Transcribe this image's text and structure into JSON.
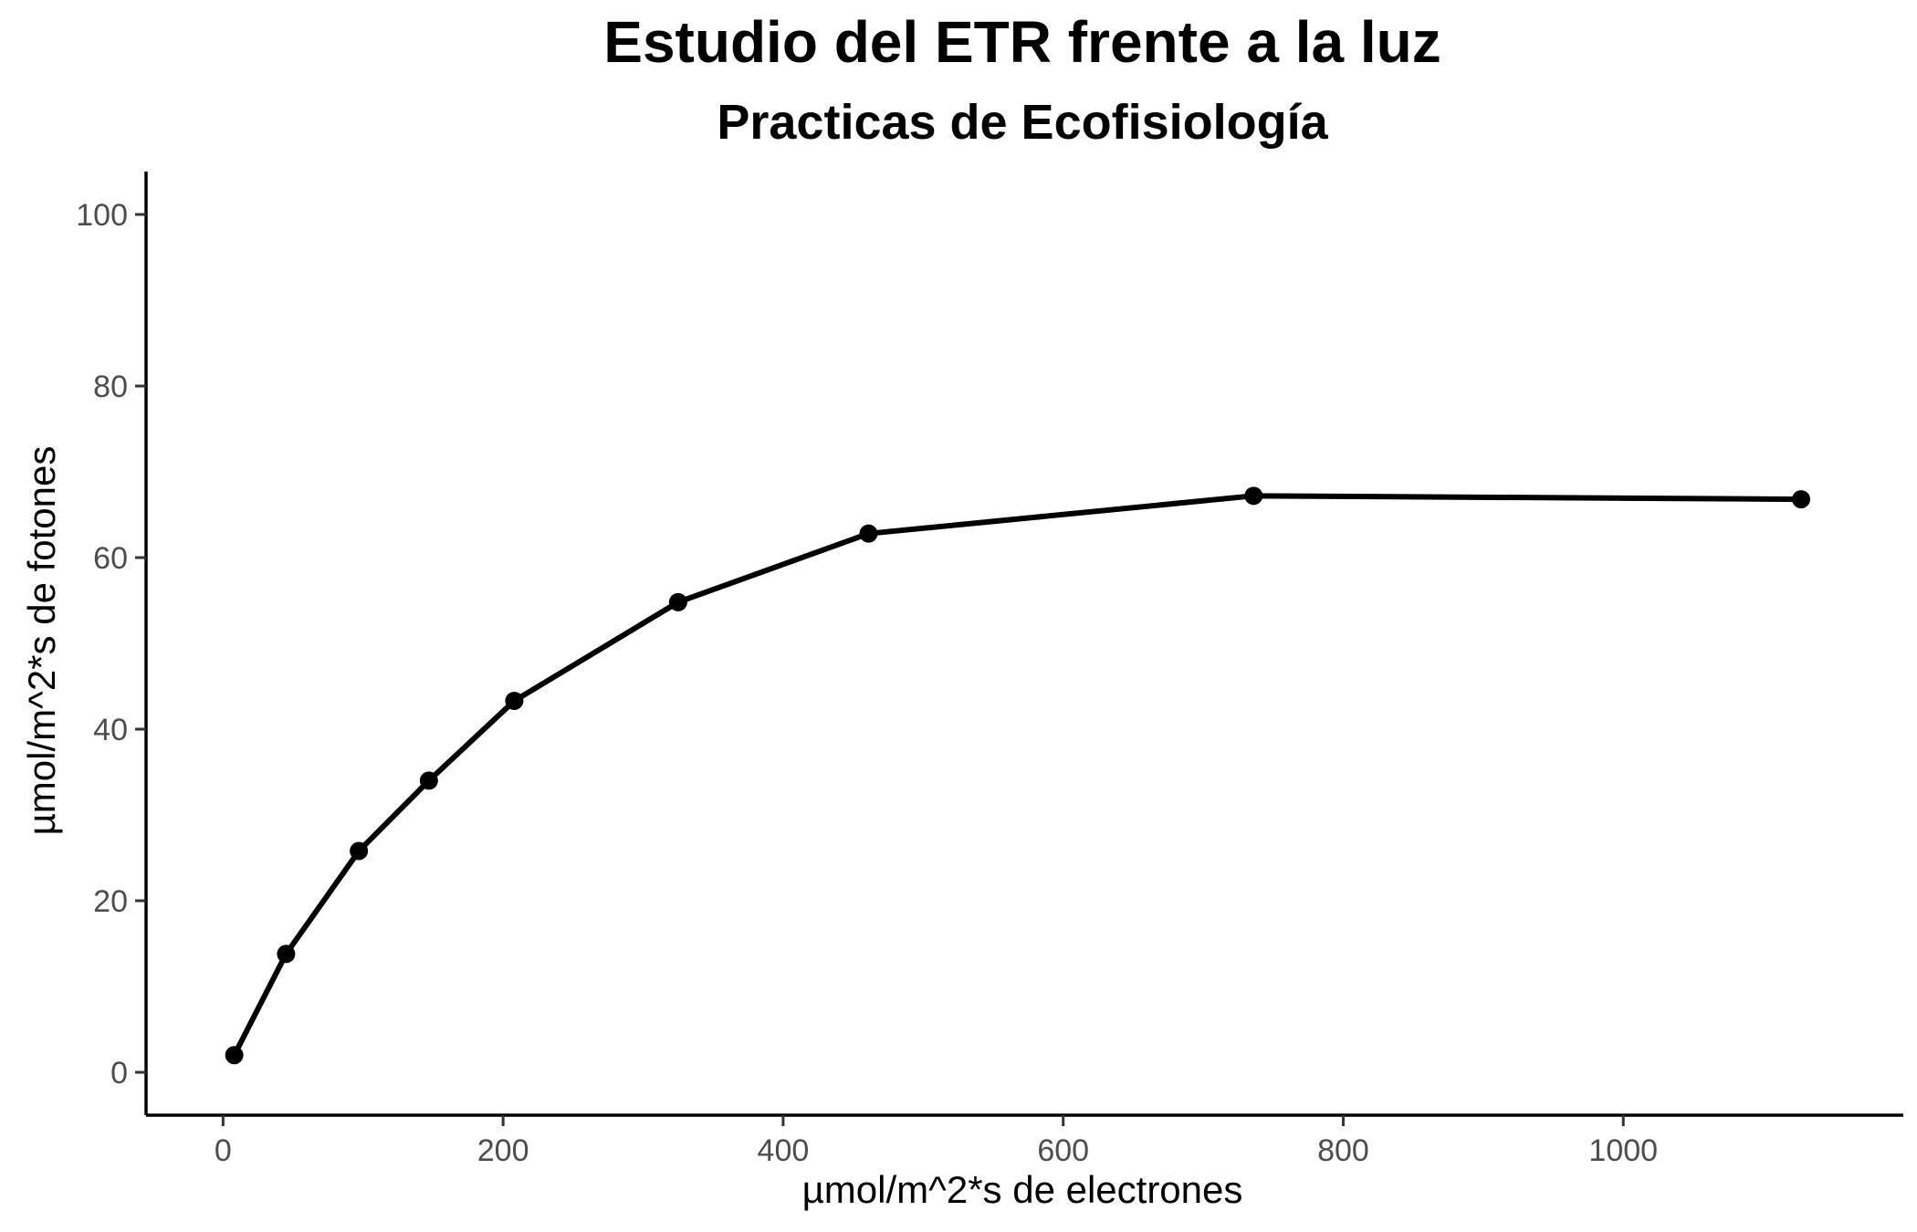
{
  "chart_data": {
    "type": "line",
    "title": "Estudio del ETR frente a la luz",
    "subtitle": "Practicas de Ecofisiología",
    "xlabel": "µmol/m^2*s de electrones",
    "ylabel": "µmol/m^2*s de fotones",
    "xlim": [
      -55,
      1200
    ],
    "ylim": [
      -5,
      105
    ],
    "xticks": [
      0,
      200,
      400,
      600,
      800,
      1000
    ],
    "yticks": [
      0,
      20,
      40,
      60,
      80,
      100
    ],
    "grid": false,
    "legend": "none",
    "series": [
      {
        "color": "#000000",
        "x": [
          8,
          45,
          97,
          147,
          208,
          325,
          461,
          736,
          1127
        ],
        "y": [
          2.0,
          13.8,
          25.8,
          34.0,
          43.3,
          54.8,
          62.8,
          67.2,
          66.8
        ]
      }
    ]
  }
}
